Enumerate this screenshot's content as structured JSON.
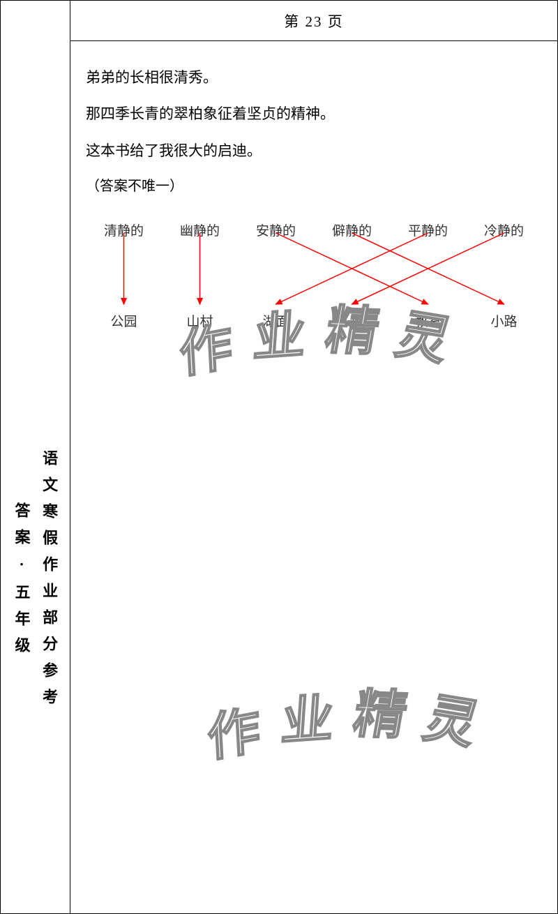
{
  "header": {
    "title": "第 23 页"
  },
  "sidebar": {
    "line1": "语文寒假作业部分参考",
    "line2": "答案·五年级"
  },
  "content": {
    "sentences": [
      "弟弟的长相很清秀。",
      "那四季长青的翠柏象征着坚贞的精神。",
      "这本书给了我很大的启迪。"
    ],
    "note": "（答案不唯一）"
  },
  "matching": {
    "top_font_color": "#555555",
    "bottom_font_color": "#333333",
    "font_size": 19,
    "top": [
      "清静的",
      "幽静的",
      "安静的",
      "僻静的",
      "平静的",
      "冷静的"
    ],
    "bottom": [
      "公园",
      "山村",
      "湖面",
      "头脑",
      "教室",
      "小路"
    ],
    "arrow_color": "#ff0000",
    "arrow_width": 1.5,
    "links": [
      {
        "from": 0,
        "to": 0
      },
      {
        "from": 1,
        "to": 1
      },
      {
        "from": 2,
        "to": 4
      },
      {
        "from": 3,
        "to": 5
      },
      {
        "from": 4,
        "to": 2
      },
      {
        "from": 5,
        "to": 3
      }
    ]
  },
  "watermark": {
    "text": "作业精灵",
    "stroke_color": "#888888",
    "fill_color": "#ffffff",
    "font_size": 75
  }
}
